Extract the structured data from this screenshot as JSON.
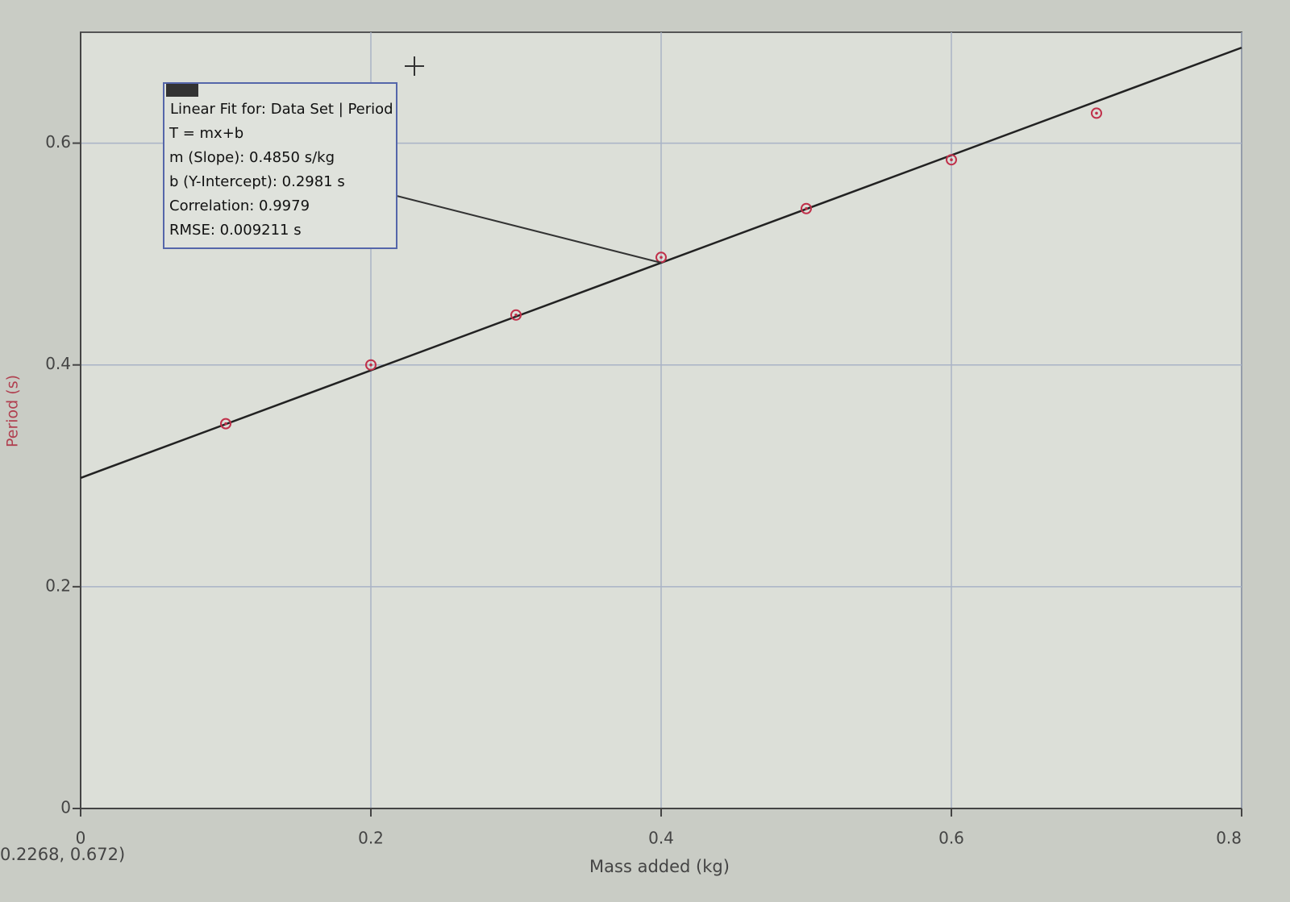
{
  "chart_data": {
    "type": "scatter",
    "x_label": "Mass added (kg)",
    "y_label": "Period (s)",
    "x": [
      0.1,
      0.2,
      0.3,
      0.4,
      0.5,
      0.6,
      0.7
    ],
    "series": [
      {
        "name": "Period",
        "color": "#c0304a",
        "values": [
          0.347,
          0.4,
          0.445,
          0.497,
          0.541,
          0.585,
          0.627
        ]
      }
    ],
    "fit": {
      "slope": 0.485,
      "intercept": 0.2981,
      "color": "#222222"
    },
    "annotation": {
      "title": "Linear Fit for: Data Set | Period",
      "lines": [
        "T = mx+b",
        "m (Slope): 0.4850 s/kg",
        "b (Y-Intercept): 0.2981 s",
        "Correlation: 0.9979",
        "RMSE: 0.009211 s"
      ]
    },
    "cursor_readout": "0.2268, 0.672)",
    "xlim": [
      0,
      0.8
    ],
    "ylim": [
      0,
      0.7
    ],
    "xticks": [
      0,
      0.2,
      0.4,
      0.6,
      0.8
    ],
    "yticks": [
      0,
      0.2,
      0.4,
      0.6
    ],
    "grid": true
  }
}
